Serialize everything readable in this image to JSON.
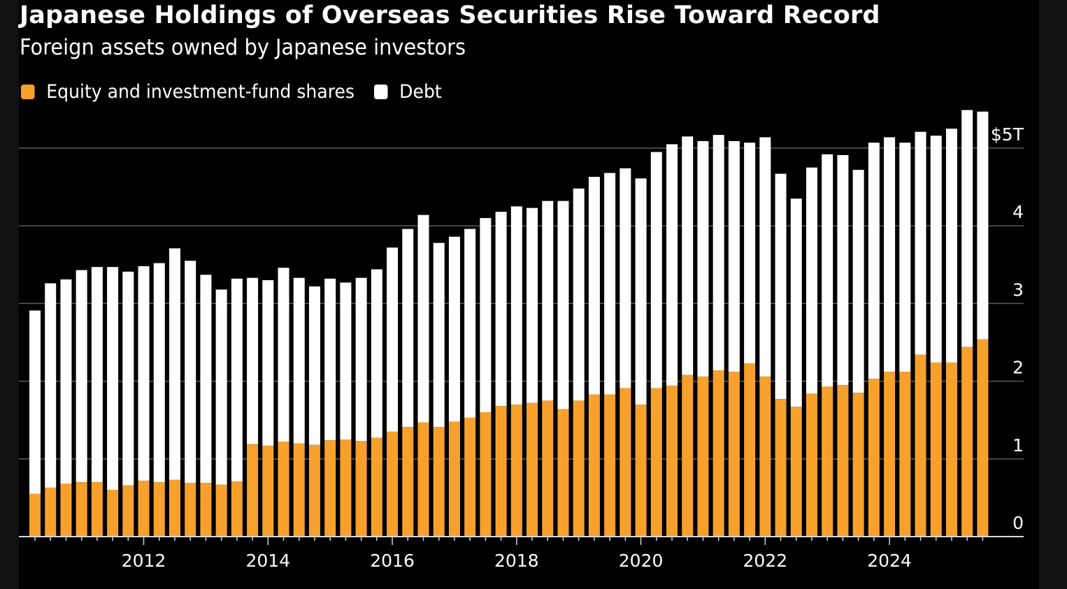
{
  "header": {
    "title": "Japanese Holdings of Overseas Securities Rise Toward Record",
    "subtitle": "Foreign assets owned by Japanese investors"
  },
  "colors": {
    "equity": "#f7a12c",
    "debt": "#ffffff",
    "background": "#000000",
    "gridline": "#5a5a5a"
  },
  "chart_data": {
    "type": "bar",
    "stacked": true,
    "title": "Japanese Holdings of Overseas Securities Rise Toward Record",
    "subtitle": "Foreign assets owned by Japanese investors",
    "xlabel": "",
    "ylabel": "",
    "ylim": [
      0,
      5
    ],
    "y_ticks": [
      0,
      1,
      2,
      3,
      4,
      5
    ],
    "y_tick_labels": [
      "0",
      "1",
      "2",
      "3",
      "4",
      "$5T"
    ],
    "y_axis_position": "right",
    "grid": true,
    "legend_position": "top-left",
    "x_tick_labels": [
      "2012",
      "2014",
      "2016",
      "2018",
      "2020",
      "2022",
      "2024"
    ],
    "categories": [
      "2010Q1",
      "2010Q2",
      "2010Q3",
      "2010Q4",
      "2011Q1",
      "2011Q2",
      "2011Q3",
      "2011Q4",
      "2012Q1",
      "2012Q2",
      "2012Q3",
      "2012Q4",
      "2013Q1",
      "2013Q2",
      "2013Q3",
      "2013Q4",
      "2014Q1",
      "2014Q2",
      "2014Q3",
      "2014Q4",
      "2015Q1",
      "2015Q2",
      "2015Q3",
      "2015Q4",
      "2016Q1",
      "2016Q2",
      "2016Q3",
      "2016Q4",
      "2017Q1",
      "2017Q2",
      "2017Q3",
      "2017Q4",
      "2018Q1",
      "2018Q2",
      "2018Q3",
      "2018Q4",
      "2019Q1",
      "2019Q2",
      "2019Q3",
      "2019Q4",
      "2020Q1",
      "2020Q2",
      "2020Q3",
      "2020Q4",
      "2021Q1",
      "2021Q2",
      "2021Q3",
      "2021Q4",
      "2022Q1",
      "2022Q2",
      "2022Q3",
      "2022Q4",
      "2023Q1",
      "2023Q2",
      "2023Q3",
      "2023Q4",
      "2024Q1",
      "2024Q2",
      "2024Q3",
      "2024Q4",
      "2025Q1",
      "2025Q2"
    ],
    "year_tick_categories": [
      "2011Q4",
      "2013Q4",
      "2015Q4",
      "2017Q4",
      "2019Q4",
      "2021Q4",
      "2023Q4"
    ],
    "series": [
      {
        "name": "Equity and investment-fund shares",
        "color": "#f7a12c",
        "values": [
          0.55,
          0.63,
          0.68,
          0.7,
          0.7,
          0.6,
          0.66,
          0.72,
          0.7,
          0.73,
          0.69,
          0.69,
          0.67,
          0.71,
          1.19,
          1.17,
          1.22,
          1.2,
          1.18,
          1.24,
          1.25,
          1.23,
          1.27,
          1.35,
          1.41,
          1.47,
          1.41,
          1.48,
          1.53,
          1.6,
          1.68,
          1.7,
          1.72,
          1.75,
          1.64,
          1.75,
          1.83,
          1.83,
          1.91,
          1.7,
          1.91,
          1.94,
          2.08,
          2.06,
          2.14,
          2.12,
          2.23,
          2.06,
          1.77,
          1.67,
          1.84,
          1.93,
          1.95,
          1.85,
          2.03,
          2.12,
          2.12,
          2.34,
          2.24,
          2.24,
          2.44,
          2.54
        ]
      },
      {
        "name": "Debt",
        "color": "#ffffff",
        "values": [
          2.36,
          2.63,
          2.63,
          2.73,
          2.77,
          2.87,
          2.75,
          2.76,
          2.82,
          2.98,
          2.86,
          2.68,
          2.51,
          2.61,
          2.14,
          2.13,
          2.24,
          2.13,
          2.04,
          2.08,
          2.02,
          2.1,
          2.17,
          2.37,
          2.55,
          2.67,
          2.37,
          2.38,
          2.43,
          2.5,
          2.5,
          2.55,
          2.51,
          2.57,
          2.68,
          2.73,
          2.8,
          2.85,
          2.83,
          2.91,
          3.04,
          3.11,
          3.07,
          3.03,
          3.03,
          2.97,
          2.84,
          3.08,
          2.9,
          2.68,
          2.91,
          2.99,
          2.96,
          2.87,
          3.04,
          3.02,
          2.95,
          2.87,
          2.92,
          3.01,
          3.05,
          2.93
        ]
      }
    ]
  }
}
